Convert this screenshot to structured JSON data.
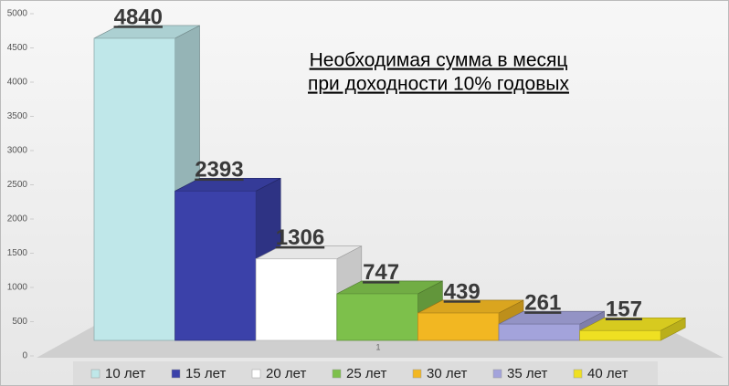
{
  "chart_data": {
    "type": "bar3d",
    "title": [
      "Необходимая сумма в месяц",
      "при доходности 10% годовых"
    ],
    "categories": [
      "1"
    ],
    "series": [
      {
        "name": "10 лет",
        "color": "#bfe7e9",
        "values": [
          4840
        ]
      },
      {
        "name": "15 лет",
        "color": "#3b41a9",
        "values": [
          2393
        ]
      },
      {
        "name": "20 лет",
        "color": "#ffffff",
        "values": [
          1306
        ]
      },
      {
        "name": "25 лет",
        "color": "#7dc04b",
        "values": [
          747
        ]
      },
      {
        "name": "30 лет",
        "color": "#f2b722",
        "values": [
          439
        ]
      },
      {
        "name": "35 лет",
        "color": "#a3a3db",
        "values": [
          261
        ]
      },
      {
        "name": "40 лет",
        "color": "#efe022",
        "values": [
          157
        ]
      }
    ],
    "ylim": [
      0,
      5000
    ],
    "yticks": [
      0,
      500,
      1000,
      1500,
      2000,
      2500,
      3000,
      3500,
      4000,
      4500,
      5000
    ],
    "legend": "bottom"
  }
}
